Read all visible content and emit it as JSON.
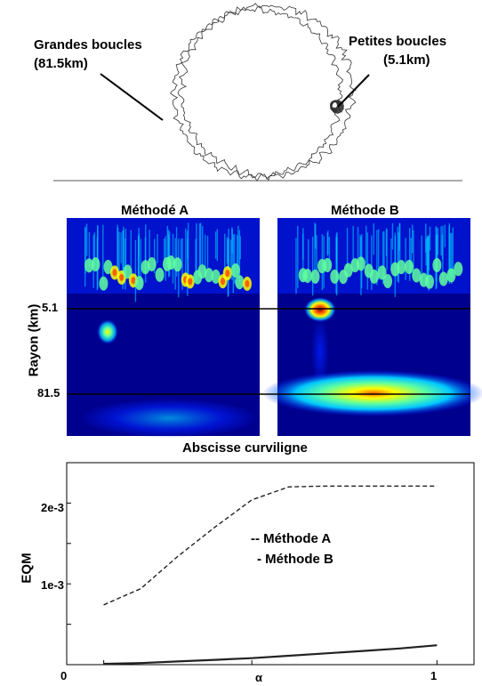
{
  "loop_figure": {
    "big_loops_label_line1": "Grandes boucles",
    "big_loops_label_line2": "(81.5km)",
    "small_loops_label_line1": "Petites boucles",
    "small_loops_label_line2": "(5.1km)"
  },
  "heatmaps": {
    "panel_a_title": "Méthodé A",
    "panel_b_title": "Méthode B",
    "y_axis_label": "Rayon (km)",
    "x_axis_label": "Abscisse curviligne",
    "tick_small_radius": "5.1",
    "tick_big_radius": "81.5",
    "colormap": [
      "#00008f",
      "#0020ff",
      "#00c8ff",
      "#60ff9f",
      "#ffff00",
      "#ff6000",
      "#8f0000"
    ]
  },
  "chart_data": {
    "type": "line",
    "xlabel": "α",
    "ylabel": "EQM",
    "x_ticks": [
      "0",
      "α",
      "1"
    ],
    "y_ticks": [
      "2e-3",
      "1e-3"
    ],
    "xlim": [
      0,
      1.1
    ],
    "ylim": [
      0,
      0.0025
    ],
    "legend": [
      "-- Méthode A",
      "- Méthode B"
    ],
    "legend_position": "center",
    "series": [
      {
        "name": "Méthode A",
        "style": "dashed",
        "x": [
          0.1,
          0.2,
          0.3,
          0.4,
          0.5,
          0.6,
          0.7,
          0.8,
          0.9,
          1.0
        ],
        "y": [
          0.00074,
          0.00094,
          0.00134,
          0.0017,
          0.00204,
          0.0022,
          0.00221,
          0.00221,
          0.00221,
          0.00221
        ]
      },
      {
        "name": "Méthode B",
        "style": "solid",
        "x": [
          0.1,
          0.2,
          0.3,
          0.4,
          0.5,
          0.6,
          0.7,
          0.8,
          0.9,
          1.0
        ],
        "y": [
          1e-05,
          2e-05,
          4e-05,
          6e-05,
          8e-05,
          0.00011,
          0.00014,
          0.00017,
          0.0002,
          0.00024
        ]
      }
    ]
  }
}
